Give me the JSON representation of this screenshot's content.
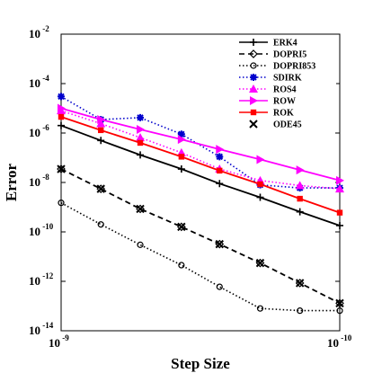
{
  "chart_data": {
    "type": "line",
    "xlabel": "Step Size",
    "ylabel": "Error",
    "x_scale": "log-reversed",
    "y_scale": "log",
    "xlim": [
      1e-09,
      1e-10
    ],
    "ylim": [
      1e-14,
      0.01
    ],
    "x_ticks": [
      {
        "value": 1e-09,
        "base": "10",
        "exp": "-9"
      },
      {
        "value": 1e-10,
        "base": "10",
        "exp": "-10"
      }
    ],
    "y_ticks": [
      {
        "value": 0.01,
        "base": "10",
        "exp": "-2"
      },
      {
        "value": 0.0001,
        "base": "10",
        "exp": "-4"
      },
      {
        "value": 1e-06,
        "base": "10",
        "exp": "-6"
      },
      {
        "value": 1e-08,
        "base": "10",
        "exp": "-8"
      },
      {
        "value": 1e-10,
        "base": "10",
        "exp": "-10"
      },
      {
        "value": 1e-12,
        "base": "10",
        "exp": "-12"
      },
      {
        "value": 1e-14,
        "base": "10",
        "exp": "-14"
      }
    ],
    "x": [
      1e-09,
      7.2e-10,
      5.2e-10,
      3.7e-10,
      2.7e-10,
      1.93e-10,
      1.39e-10,
      1e-10
    ],
    "grid": false,
    "legend_position": "top-right",
    "series": [
      {
        "name": "ERK4",
        "color": "#000000",
        "dash": "solid",
        "marker": "plus",
        "values": [
          2e-06,
          5e-07,
          1.3e-07,
          3.5e-08,
          9e-09,
          2.5e-09,
          6.5e-10,
          1.8e-10
        ]
      },
      {
        "name": "DOPRI5",
        "color": "#000000",
        "dash": "dashed",
        "marker": "diamond",
        "values": [
          3.5e-08,
          5.5e-09,
          8.5e-10,
          1.6e-10,
          3.2e-11,
          5.5e-12,
          8.5e-13,
          1.3e-13
        ]
      },
      {
        "name": "DOPRI853",
        "color": "#000000",
        "dash": "dotted",
        "marker": "circle",
        "values": [
          1.5e-09,
          2e-10,
          3e-11,
          4.5e-12,
          6e-13,
          8e-14,
          6.5e-14,
          6.5e-14
        ]
      },
      {
        "name": "SDIRK",
        "color": "#0000cc",
        "dash": "dotted",
        "marker": "asterisk",
        "values": [
          3e-05,
          3.5e-06,
          4.2e-06,
          9e-07,
          1.1e-07,
          8e-09,
          6e-09,
          6e-09
        ]
      },
      {
        "name": "ROS4",
        "color": "#ff00ff",
        "dash": "dotted",
        "marker": "triangle",
        "values": [
          8e-06,
          2.4e-06,
          6.5e-07,
          1.6e-07,
          3.5e-08,
          1.2e-08,
          7.5e-09,
          5.5e-09
        ]
      },
      {
        "name": "ROW",
        "color": "#ff00ff",
        "dash": "solid",
        "marker": "triangle-right",
        "values": [
          1e-05,
          3.5e-06,
          1.4e-06,
          5.5e-07,
          2.2e-07,
          8.5e-08,
          3.2e-08,
          1.2e-08
        ]
      },
      {
        "name": "ROK",
        "color": "#ff0000",
        "dash": "solid",
        "marker": "square",
        "values": [
          4.5e-06,
          1.3e-06,
          4e-07,
          1.1e-07,
          3e-08,
          8.5e-09,
          2.2e-09,
          6e-10
        ]
      },
      {
        "name": "ODE45",
        "color": "#000000",
        "dash": "none",
        "marker": "x",
        "values": [
          3.5e-08,
          5.5e-09,
          8.5e-10,
          1.6e-10,
          3.2e-11,
          5.5e-12,
          8.5e-13,
          1.3e-13
        ]
      }
    ]
  }
}
